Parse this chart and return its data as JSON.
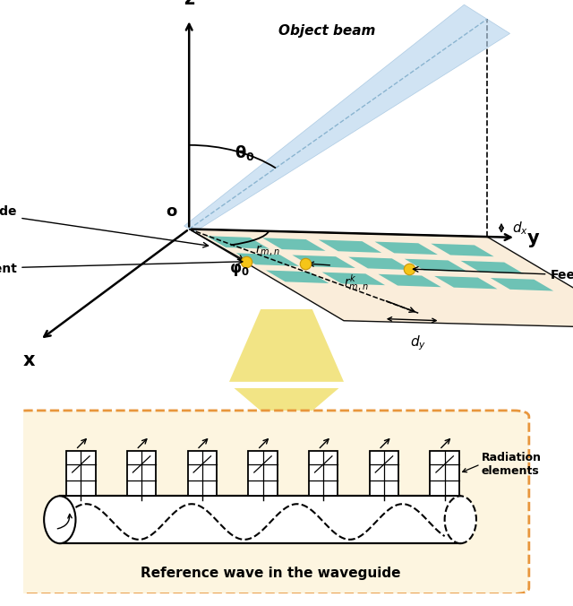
{
  "bg_color": "#ffffff",
  "panel_bg": "#faecd8",
  "surface_color": "#5bbcb0",
  "beam_color": "#b8d4ed",
  "beam_alpha": 0.65,
  "orange_dashed_color": "#e8963c",
  "dot_color": "#f5c518",
  "grid_teal": "#5bbcb0",
  "cone_color": "#f0e070",
  "waveguide_bg": "#fdf5e0",
  "origin_label": "o",
  "z_label": "z",
  "y_label": "y",
  "x_label": "x",
  "theta_label": "$\\mathbf{\\theta_0}$",
  "phi_label": "$\\mathbf{\\varphi_0}$",
  "r_mn_label": "$r_{m,n}$",
  "r_mnk_label": "$r^k_{m,n}$",
  "dx_label": "$d_x$",
  "dy_label": "$d_y$",
  "waveguide_label": "Waveguide",
  "radiation_element_label": "Radiation element",
  "feed_label": "Feed",
  "object_beam_label": "Object beam",
  "bottom_title": "Reference wave in the waveguide",
  "bottom_label": "Radiation\nelements"
}
